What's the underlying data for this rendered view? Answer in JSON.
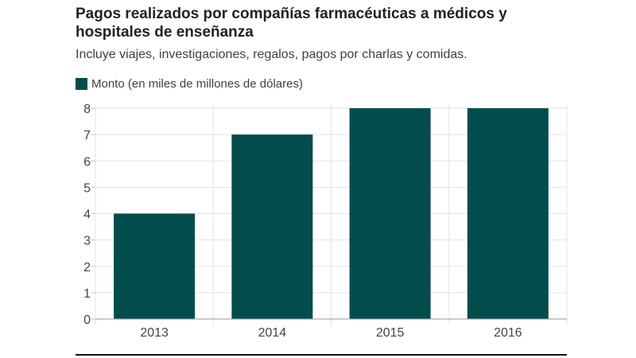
{
  "chart_data": {
    "type": "bar",
    "title": "Pagos realizados por compañías farmacéuticas a médicos y hospitales de enseñanza",
    "subtitle": "Incluye viajes, investigaciones, regalos, pagos por charlas y comidas.",
    "categories": [
      "2013",
      "2014",
      "2015",
      "2016"
    ],
    "series": [
      {
        "name": "Monto (en miles de millones de dólares)",
        "values": [
          4,
          7,
          8,
          8
        ],
        "color": "#034d4d"
      }
    ],
    "xlabel": "",
    "ylabel": "",
    "ylim": [
      0,
      8
    ],
    "yticks": [
      "0",
      "1",
      "2",
      "3",
      "4",
      "5",
      "6",
      "7",
      "8"
    ],
    "grid": true,
    "legend_position": "top-left"
  }
}
